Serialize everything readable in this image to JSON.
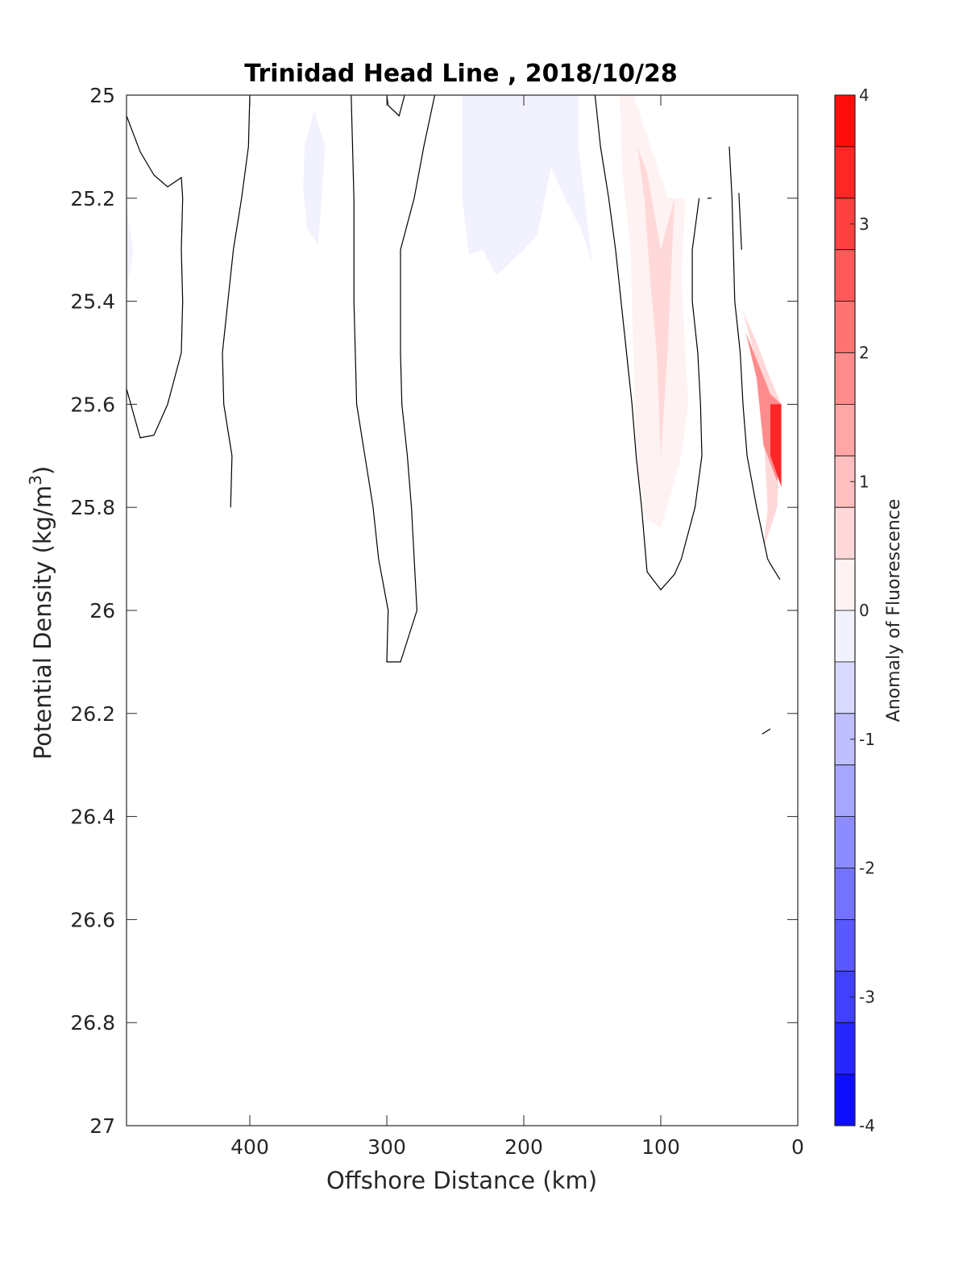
{
  "chart_data": {
    "type": "heatmap",
    "title": "Trinidad Head Line , 2018/10/28",
    "xlabel": "Offshore Distance (km)",
    "ylabel_main": "Potential Density (kg/m",
    "ylabel_sup": "3",
    "ylabel_close": ")",
    "x_reversed": true,
    "y_reversed": true,
    "xlim": [
      0,
      490
    ],
    "ylim": [
      25,
      27
    ],
    "xticks": [
      {
        "value": 400,
        "label": "400"
      },
      {
        "value": 300,
        "label": "300"
      },
      {
        "value": 200,
        "label": "200"
      },
      {
        "value": 100,
        "label": "100"
      },
      {
        "value": 0,
        "label": "0"
      }
    ],
    "yticks": [
      {
        "value": 25,
        "label": "25"
      },
      {
        "value": 25.2,
        "label": "25.2"
      },
      {
        "value": 25.4,
        "label": "25.4"
      },
      {
        "value": 25.6,
        "label": "25.6"
      },
      {
        "value": 25.8,
        "label": "25.8"
      },
      {
        "value": 26,
        "label": "26"
      },
      {
        "value": 26.2,
        "label": "26.2"
      },
      {
        "value": 26.4,
        "label": "26.4"
      },
      {
        "value": 26.6,
        "label": "26.6"
      },
      {
        "value": 26.8,
        "label": "26.8"
      },
      {
        "value": 27,
        "label": "27"
      }
    ],
    "colorbar": {
      "label": "Anomaly of Fluorescence",
      "range": [
        -4,
        4
      ],
      "levels": 20,
      "low_color": "#0000ff",
      "mid_color": "#ffffff",
      "high_color": "#ff0000",
      "ticks": [
        {
          "value": 4,
          "label": "4"
        },
        {
          "value": 3,
          "label": "3"
        },
        {
          "value": 2,
          "label": "2"
        },
        {
          "value": 1,
          "label": "1"
        },
        {
          "value": 0,
          "label": "0"
        },
        {
          "value": -1,
          "label": "-1"
        },
        {
          "value": -2,
          "label": "-2"
        },
        {
          "value": -3,
          "label": "-3"
        },
        {
          "value": -4,
          "label": "-4"
        }
      ]
    },
    "filled_regions": [
      {
        "name": "neg-patch-far-offshore",
        "anomaly": -0.3,
        "points": [
          [
            490,
            25.22
          ],
          [
            485,
            25.3
          ],
          [
            490,
            25.38
          ]
        ]
      },
      {
        "name": "neg-patch-360km",
        "anomaly": -0.3,
        "points": [
          [
            360,
            25.1
          ],
          [
            353,
            25.03
          ],
          [
            345,
            25.1
          ],
          [
            350,
            25.29
          ],
          [
            358,
            25.26
          ],
          [
            361,
            25.18
          ]
        ]
      },
      {
        "name": "neg-patch-200km",
        "anomaly": -0.3,
        "points": [
          [
            245,
            25
          ],
          [
            160,
            25
          ],
          [
            160,
            25.1
          ],
          [
            150,
            25.33
          ],
          [
            158,
            25.26
          ],
          [
            170,
            25.2
          ],
          [
            180,
            25.14
          ],
          [
            190,
            25.27
          ],
          [
            200,
            25.3
          ],
          [
            220,
            25.35
          ],
          [
            230,
            25.3
          ],
          [
            240,
            25.31
          ],
          [
            245,
            25.2
          ]
        ]
      },
      {
        "name": "pos-patch-100km-outer",
        "anomaly": 0.3,
        "points": [
          [
            130,
            25
          ],
          [
            120,
            25
          ],
          [
            95,
            25.2
          ],
          [
            82,
            25.2
          ],
          [
            85,
            25.35
          ],
          [
            80,
            25.6
          ],
          [
            85,
            25.7
          ],
          [
            100,
            25.84
          ],
          [
            112,
            25.82
          ],
          [
            118,
            25.7
          ],
          [
            120,
            25.5
          ],
          [
            122,
            25.3
          ],
          [
            128,
            25.15
          ]
        ]
      },
      {
        "name": "pos-patch-100km-inner",
        "anomaly": 0.7,
        "points": [
          [
            117,
            25.1
          ],
          [
            110,
            25.15
          ],
          [
            100,
            25.3
          ],
          [
            90,
            25.2
          ],
          [
            95,
            25.5
          ],
          [
            100,
            25.7
          ],
          [
            103,
            25.5
          ],
          [
            108,
            25.35
          ],
          [
            112,
            25.2
          ]
        ]
      },
      {
        "name": "pos-patch-coast-outer",
        "anomaly": 0.7,
        "points": [
          [
            40,
            25.42
          ],
          [
            32,
            25.5
          ],
          [
            25,
            25.65
          ],
          [
            22,
            25.8
          ],
          [
            25,
            25.88
          ],
          [
            15,
            25.8
          ],
          [
            12,
            25.6
          ],
          [
            20,
            25.55
          ],
          [
            30,
            25.48
          ]
        ]
      },
      {
        "name": "pos-patch-coast-mid",
        "anomaly": 1.9,
        "points": [
          [
            38,
            25.46
          ],
          [
            30,
            25.55
          ],
          [
            25,
            25.68
          ],
          [
            15,
            25.75
          ],
          [
            12,
            25.6
          ],
          [
            20,
            25.58
          ]
        ]
      },
      {
        "name": "pos-patch-coast-core",
        "anomaly": 3.5,
        "points": [
          [
            20,
            25.6
          ],
          [
            12,
            25.6
          ],
          [
            12,
            25.76
          ],
          [
            20,
            25.7
          ]
        ]
      }
    ],
    "zero_contours": [
      {
        "name": "contour-far-offshore",
        "points": [
          [
            490,
            25.04
          ],
          [
            480,
            25.11
          ],
          [
            470,
            25.155
          ],
          [
            460,
            25.178
          ],
          [
            450,
            25.16
          ],
          [
            449,
            25.2
          ],
          [
            450,
            25.3
          ],
          [
            449,
            25.4
          ],
          [
            450,
            25.5
          ],
          [
            460,
            25.6
          ],
          [
            470,
            25.66
          ],
          [
            480,
            25.665
          ],
          [
            490,
            25.57
          ]
        ]
      },
      {
        "name": "contour-400km-edge",
        "points": [
          [
            400,
            25
          ],
          [
            400,
            25.02
          ]
        ]
      },
      {
        "name": "contour-400km",
        "points": [
          [
            400,
            25
          ],
          [
            401,
            25.1
          ],
          [
            406,
            25.2
          ],
          [
            412,
            25.3
          ],
          [
            416,
            25.4
          ],
          [
            420,
            25.5
          ],
          [
            419,
            25.6
          ],
          [
            413,
            25.7
          ],
          [
            414,
            25.8
          ]
        ]
      },
      {
        "name": "contour-300km",
        "points": [
          [
            326,
            25
          ],
          [
            325,
            25.1
          ],
          [
            324,
            25.2
          ],
          [
            324,
            25.3
          ],
          [
            324,
            25.4
          ],
          [
            323,
            25.5
          ],
          [
            322,
            25.6
          ],
          [
            316,
            25.7
          ],
          [
            310,
            25.8
          ],
          [
            306,
            25.9
          ],
          [
            299,
            26
          ],
          [
            300,
            26.1
          ],
          [
            290,
            26.1
          ],
          [
            278,
            26
          ],
          [
            280,
            25.9
          ],
          [
            282,
            25.8
          ],
          [
            285,
            25.7
          ],
          [
            289,
            25.6
          ],
          [
            290,
            25.5
          ],
          [
            290,
            25.4
          ],
          [
            290,
            25.3
          ],
          [
            280,
            25.2
          ],
          [
            273,
            25.1
          ],
          [
            265,
            25
          ]
        ]
      },
      {
        "name": "contour-300km-top",
        "points": [
          [
            300,
            25
          ],
          [
            299,
            25.02
          ],
          [
            291,
            25.04
          ],
          [
            287,
            25
          ]
        ]
      },
      {
        "name": "contour-100km",
        "points": [
          [
            148,
            25
          ],
          [
            144,
            25.1
          ],
          [
            138,
            25.2
          ],
          [
            133,
            25.3
          ],
          [
            129,
            25.4
          ],
          [
            125,
            25.5
          ],
          [
            121,
            25.6
          ],
          [
            118,
            25.7
          ],
          [
            114,
            25.8
          ],
          [
            110,
            25.925
          ],
          [
            100,
            25.96
          ],
          [
            90,
            25.93
          ],
          [
            85,
            25.9
          ],
          [
            75,
            25.8
          ],
          [
            70,
            25.7
          ],
          [
            71,
            25.6
          ],
          [
            73,
            25.5
          ],
          [
            77,
            25.4
          ],
          [
            77,
            25.3
          ],
          [
            72,
            25.2
          ]
        ]
      },
      {
        "name": "contour-coast-top",
        "points": [
          [
            66,
            25.2
          ],
          [
            63,
            25.2
          ]
        ]
      },
      {
        "name": "contour-coast",
        "points": [
          [
            50,
            25.1
          ],
          [
            48,
            25.2
          ],
          [
            47,
            25.3
          ],
          [
            46,
            25.4
          ],
          [
            42,
            25.5
          ],
          [
            40,
            25.6
          ],
          [
            37,
            25.7
          ],
          [
            30,
            25.8
          ],
          [
            22,
            25.9
          ],
          [
            20,
            25.91
          ],
          [
            13,
            25.94
          ]
        ]
      },
      {
        "name": "contour-coast-nearshore",
        "points": [
          [
            43,
            25.19
          ],
          [
            41,
            25.3
          ]
        ]
      },
      {
        "name": "contour-deep-fragment",
        "points": [
          [
            26,
            26.24
          ],
          [
            20,
            26.23
          ]
        ]
      }
    ]
  }
}
